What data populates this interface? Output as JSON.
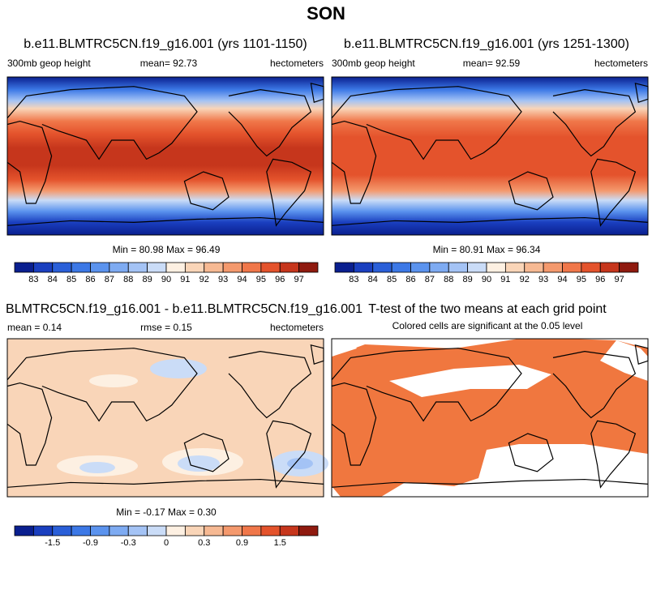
{
  "title": "SON",
  "panels": [
    {
      "title": "b.e11.BLMTRC5CN.f19_g16.001 (yrs 1101-1150)",
      "left": "300mb geop height",
      "center": "mean=  92.73",
      "right": "hectometers",
      "minmax": "Min =  80.98 Max =  96.49",
      "colorbar": {
        "labels": [
          "83",
          "84",
          "85",
          "86",
          "87",
          "88",
          "89",
          "90",
          "91",
          "92",
          "93",
          "94",
          "95",
          "96",
          "97"
        ],
        "colors": [
          "#0a1f8f",
          "#1a3fbf",
          "#2a5fd8",
          "#3c78e6",
          "#5b93ee",
          "#7eabf2",
          "#a4c3f5",
          "#cadcf7",
          "#fdf0e2",
          "#f9d5b8",
          "#f6b993",
          "#f4996d",
          "#f0774a",
          "#e4532c",
          "#c6361c",
          "#8f1a0f"
        ]
      }
    },
    {
      "title": "b.e11.BLMTRC5CN.f19_g16.001 (yrs 1251-1300)",
      "left": "300mb geop height",
      "center": "mean=  92.59",
      "right": "hectometers",
      "minmax": "Min =  80.91 Max =  96.34",
      "colorbar": {
        "labels": [
          "83",
          "84",
          "85",
          "86",
          "87",
          "88",
          "89",
          "90",
          "91",
          "92",
          "93",
          "94",
          "95",
          "96",
          "97"
        ],
        "colors": [
          "#0a1f8f",
          "#1a3fbf",
          "#2a5fd8",
          "#3c78e6",
          "#5b93ee",
          "#7eabf2",
          "#a4c3f5",
          "#cadcf7",
          "#fdf0e2",
          "#f9d5b8",
          "#f6b993",
          "#f4996d",
          "#f0774a",
          "#e4532c",
          "#c6361c",
          "#8f1a0f"
        ]
      }
    },
    {
      "title": "BLMTRC5CN.f19_g16.001 - b.e11.BLMTRC5CN.f19_g16.001",
      "left": "mean =   0.14",
      "center": "rmse =   0.15",
      "right": "hectometers",
      "minmax": "Min =  -0.17 Max =   0.30",
      "colorbar": {
        "labels": [
          "-1.5",
          "-0.9",
          "-0.3",
          "0",
          "0.3",
          "0.9",
          "1.5"
        ],
        "colors": [
          "#0a1f8f",
          "#1a3fbf",
          "#2a5fd8",
          "#3c78e6",
          "#5b93ee",
          "#7eabf2",
          "#a4c3f5",
          "#cadcf7",
          "#fdf0e2",
          "#f9d5b8",
          "#f6b993",
          "#f4996d",
          "#f0774a",
          "#e4532c",
          "#c6361c",
          "#8f1a0f"
        ]
      }
    },
    {
      "title": "T-test of the two means at each grid point",
      "subtitle": "Colored cells are significant at the 0.05 level"
    }
  ]
}
